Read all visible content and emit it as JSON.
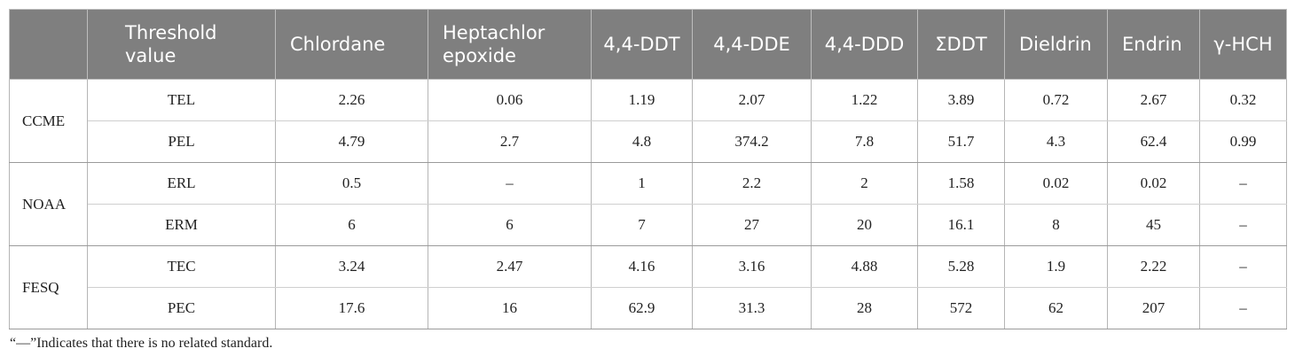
{
  "table": {
    "headers": [
      "",
      "Threshold value",
      "Chlordane",
      "Heptachlor epoxide",
      "4,4-DDT",
      "4,4-DDE",
      "4,4-DDD",
      "ΣDDT",
      "Dieldrin",
      "Endrin",
      "γ-HCH"
    ],
    "groups": [
      {
        "name": "CCME",
        "rows": [
          [
            "TEL",
            "2.26",
            "0.06",
            "1.19",
            "2.07",
            "1.22",
            "3.89",
            "0.72",
            "2.67",
            "0.32"
          ],
          [
            "PEL",
            "4.79",
            "2.7",
            "4.8",
            "374.2",
            "7.8",
            "51.7",
            "4.3",
            "62.4",
            "0.99"
          ]
        ]
      },
      {
        "name": "NOAA",
        "rows": [
          [
            "ERL",
            "0.5",
            "–",
            "1",
            "2.2",
            "2",
            "1.58",
            "0.02",
            "0.02",
            "–"
          ],
          [
            "ERM",
            "6",
            "6",
            "7",
            "27",
            "20",
            "16.1",
            "8",
            "45",
            "–"
          ]
        ]
      },
      {
        "name": "FESQ",
        "rows": [
          [
            "TEC",
            "3.24",
            "2.47",
            "4.16",
            "3.16",
            "4.88",
            "5.28",
            "1.9",
            "2.22",
            "–"
          ],
          [
            "PEC",
            "17.6",
            "16",
            "62.9",
            "31.3",
            "28",
            "572",
            "62",
            "207",
            "–"
          ]
        ]
      }
    ]
  },
  "footnote": "“—”Indicates that there is no related standard."
}
